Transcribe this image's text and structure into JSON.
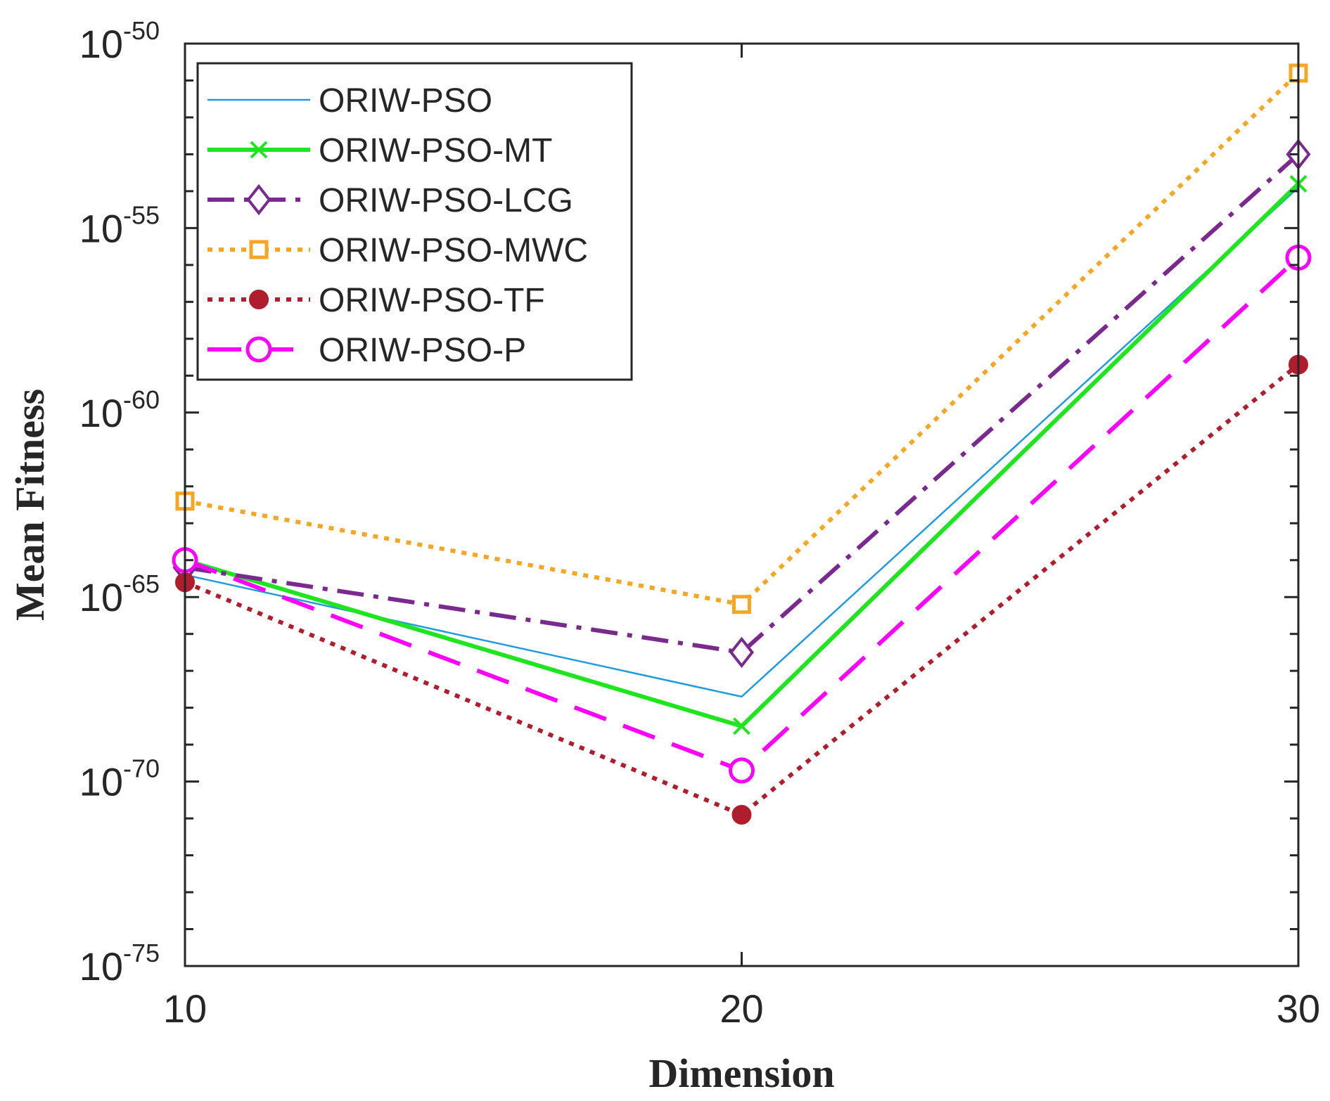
{
  "chart_data": {
    "type": "line",
    "title": "",
    "xlabel": "Dimension",
    "ylabel": "Mean Fitness",
    "yscale": "log",
    "x": [
      10,
      20,
      30
    ],
    "xlim": [
      10,
      30
    ],
    "xticks": [
      10,
      20,
      30
    ],
    "ylim_exponent": [
      -75,
      -50
    ],
    "yticks_exponent": [
      -75,
      -70,
      -65,
      -60,
      -55,
      -50
    ],
    "ytick_base": "10",
    "grid": false,
    "legend_position": "top-left",
    "series": [
      {
        "name": "ORIW-PSO",
        "color": "#1f9be0",
        "style": "solid",
        "marker": "none",
        "values_exponent": [
          -64.4,
          -67.7,
          -53.9
        ]
      },
      {
        "name": "ORIW-PSO-MT",
        "color": "#1ee61e",
        "style": "solid",
        "marker": "x",
        "values_exponent": [
          -64.0,
          -68.5,
          -53.8
        ]
      },
      {
        "name": "ORIW-PSO-LCG",
        "color": "#7a2a8e",
        "style": "dashdot",
        "marker": "diamond",
        "values_exponent": [
          -64.2,
          -66.5,
          -53.0
        ]
      },
      {
        "name": "ORIW-PSO-MWC",
        "color": "#f5a623",
        "style": "dotted",
        "marker": "square",
        "values_exponent": [
          -62.4,
          -65.2,
          -50.8
        ]
      },
      {
        "name": "ORIW-PSO-TF",
        "color": "#b01e2e",
        "style": "dotted",
        "marker": "dot",
        "values_exponent": [
          -64.6,
          -70.9,
          -58.7
        ]
      },
      {
        "name": "ORIW-PSO-P",
        "color": "#ff00ff",
        "style": "dashed",
        "marker": "circle",
        "values_exponent": [
          -64.0,
          -69.7,
          -55.8
        ]
      }
    ]
  }
}
